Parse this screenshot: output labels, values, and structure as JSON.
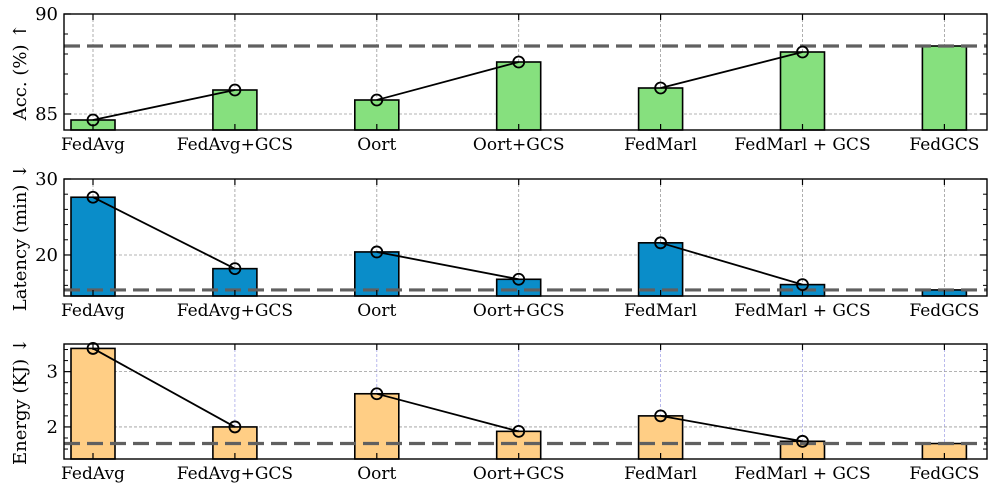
{
  "chart_data": [
    {
      "type": "bar",
      "ylabel": "Acc. (%) ↑",
      "categories": [
        "FedAvg",
        "FedAvg+GCS",
        "Oort",
        "Oort+GCS",
        "FedMarl",
        "FedMarl + GCS",
        "FedGCS"
      ],
      "values": [
        84.7,
        86.2,
        85.7,
        87.6,
        86.3,
        88.1,
        88.4
      ],
      "line_values": [
        84.7,
        86.2,
        85.7,
        87.6,
        86.3,
        88.1
      ],
      "line_connections": [
        [
          0,
          1
        ],
        [
          2,
          3
        ],
        [
          4,
          5
        ]
      ],
      "reference_line": 88.4,
      "ylim": [
        84.2,
        90
      ],
      "yticks": [
        85,
        90
      ],
      "bar_color": "#86e07e",
      "grid": true
    },
    {
      "type": "bar",
      "ylabel": "Latency (min) ↓",
      "categories": [
        "FedAvg",
        "FedAvg+GCS",
        "Oort",
        "Oort+GCS",
        "FedMarl",
        "FedMarl + GCS",
        "FedGCS"
      ],
      "values": [
        27.6,
        18.2,
        20.4,
        16.8,
        21.6,
        16.1,
        15.4
      ],
      "line_values": [
        27.6,
        18.2,
        20.4,
        16.8,
        21.6,
        16.1
      ],
      "line_connections": [
        [
          0,
          1
        ],
        [
          2,
          3
        ],
        [
          4,
          5
        ]
      ],
      "reference_line": 15.4,
      "ylim": [
        14.6,
        30
      ],
      "yticks": [
        20,
        30
      ],
      "bar_color": "#0a8dc9",
      "grid": true
    },
    {
      "type": "bar",
      "ylabel": "Energy (KJ) ↓",
      "categories": [
        "FedAvg",
        "FedAvg+GCS",
        "Oort",
        "Oort+GCS",
        "FedMarl",
        "FedMarl + GCS",
        "FedGCS"
      ],
      "values": [
        3.42,
        2.0,
        2.6,
        1.92,
        2.2,
        1.74,
        1.7
      ],
      "line_values": [
        3.42,
        2.0,
        2.6,
        1.92,
        2.2,
        1.74
      ],
      "line_connections": [
        [
          0,
          1
        ],
        [
          2,
          3
        ],
        [
          4,
          5
        ]
      ],
      "reference_line": 1.7,
      "ylim": [
        1.42,
        3.5
      ],
      "yticks": [
        2,
        3
      ],
      "bar_color": "#ffce85",
      "grid": true
    }
  ]
}
